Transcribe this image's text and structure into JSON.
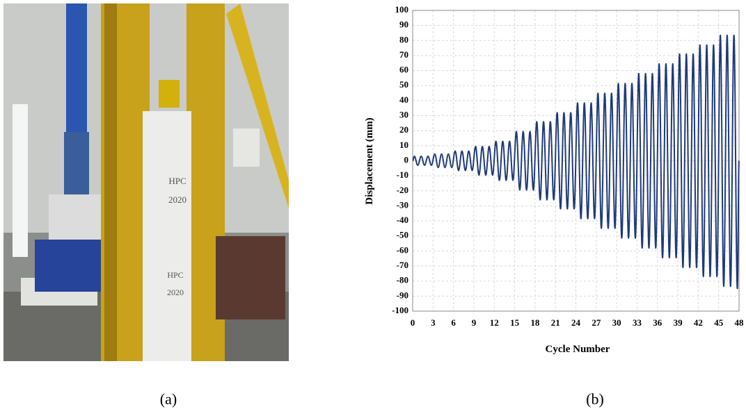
{
  "chart_data": {
    "type": "line",
    "xlabel": "Cycle Number",
    "ylabel": "Displacement (mm)",
    "xlim": [
      0,
      48
    ],
    "xticks": [
      0,
      3,
      6,
      9,
      12,
      15,
      18,
      21,
      24,
      27,
      30,
      33,
      36,
      39,
      42,
      45,
      48
    ],
    "ylim": [
      -100,
      100
    ],
    "yticks": [
      -100,
      -90,
      -80,
      -70,
      -60,
      -50,
      -40,
      -30,
      -20,
      -10,
      0,
      10,
      20,
      30,
      40,
      50,
      60,
      70,
      80,
      90,
      100
    ],
    "grid": true,
    "x": [
      0,
      0.25,
      0.75,
      1.25,
      1.75,
      2.25,
      2.75,
      3.25,
      3.75,
      4.25,
      4.75,
      5.25,
      5.75,
      6.25,
      6.75,
      7.25,
      7.75,
      8.25,
      8.75,
      9.25,
      9.75,
      10.25,
      10.75,
      11.25,
      11.75,
      12.25,
      12.75,
      13.25,
      13.75,
      14.25,
      14.75,
      15.25,
      15.75,
      16.25,
      16.75,
      17.25,
      17.75,
      18.25,
      18.75,
      19.25,
      19.75,
      20.25,
      20.75,
      21.25,
      21.75,
      22.25,
      22.75,
      23.25,
      23.75,
      24.25,
      24.75,
      25.25,
      25.75,
      26.25,
      26.75,
      27.25,
      27.75,
      28.25,
      28.75,
      29.25,
      29.75,
      30.25,
      30.75,
      31.25,
      31.75,
      32.25,
      32.75,
      33.25,
      33.75,
      34.25,
      34.75,
      35.25,
      35.75,
      36.25,
      36.75,
      37.25,
      37.75,
      38.25,
      38.75,
      39.25,
      39.75,
      40.25,
      40.75,
      41.25,
      41.75,
      42.25,
      42.75,
      43.25,
      43.75,
      44.25,
      44.75,
      45.25,
      45.75,
      46.25,
      46.75,
      47.25,
      47.75,
      48
    ],
    "series": [
      {
        "color": "#1f3a7a",
        "values": [
          0,
          3,
          -3,
          3,
          -3,
          3,
          -3,
          4.5,
          -4.5,
          4.5,
          -4.5,
          4.5,
          -4.5,
          6.5,
          -6.5,
          6.5,
          -6.5,
          6.5,
          -6.5,
          9.5,
          -9.5,
          9.5,
          -9.5,
          9.5,
          -9.5,
          13,
          -13,
          13,
          -13,
          13,
          -13,
          19.5,
          -19.5,
          19.5,
          -19.5,
          19.5,
          -19.5,
          26,
          -26,
          26,
          -26,
          26,
          -26,
          32,
          -32,
          32,
          -32,
          32,
          -32,
          38.5,
          -38.5,
          38.5,
          -38.5,
          38.5,
          -38.5,
          45,
          -45,
          45,
          -45,
          45,
          -45,
          51.5,
          -51.5,
          51.5,
          -51.5,
          51.5,
          -51.5,
          58,
          -58,
          58,
          -58,
          58,
          -58,
          64.5,
          -64.5,
          64.5,
          -64.5,
          64.5,
          -64.5,
          71,
          -71,
          71,
          -71,
          71,
          -71,
          77,
          -77,
          77,
          -77,
          77,
          -77,
          83.5,
          -83.5,
          83.5,
          -83.5,
          83.5,
          -85,
          0
        ]
      }
    ]
  },
  "photo": {
    "labels": [
      "HPC",
      "2020",
      "HPC",
      "2020"
    ]
  },
  "captions": [
    "(a)",
    "(b)"
  ]
}
